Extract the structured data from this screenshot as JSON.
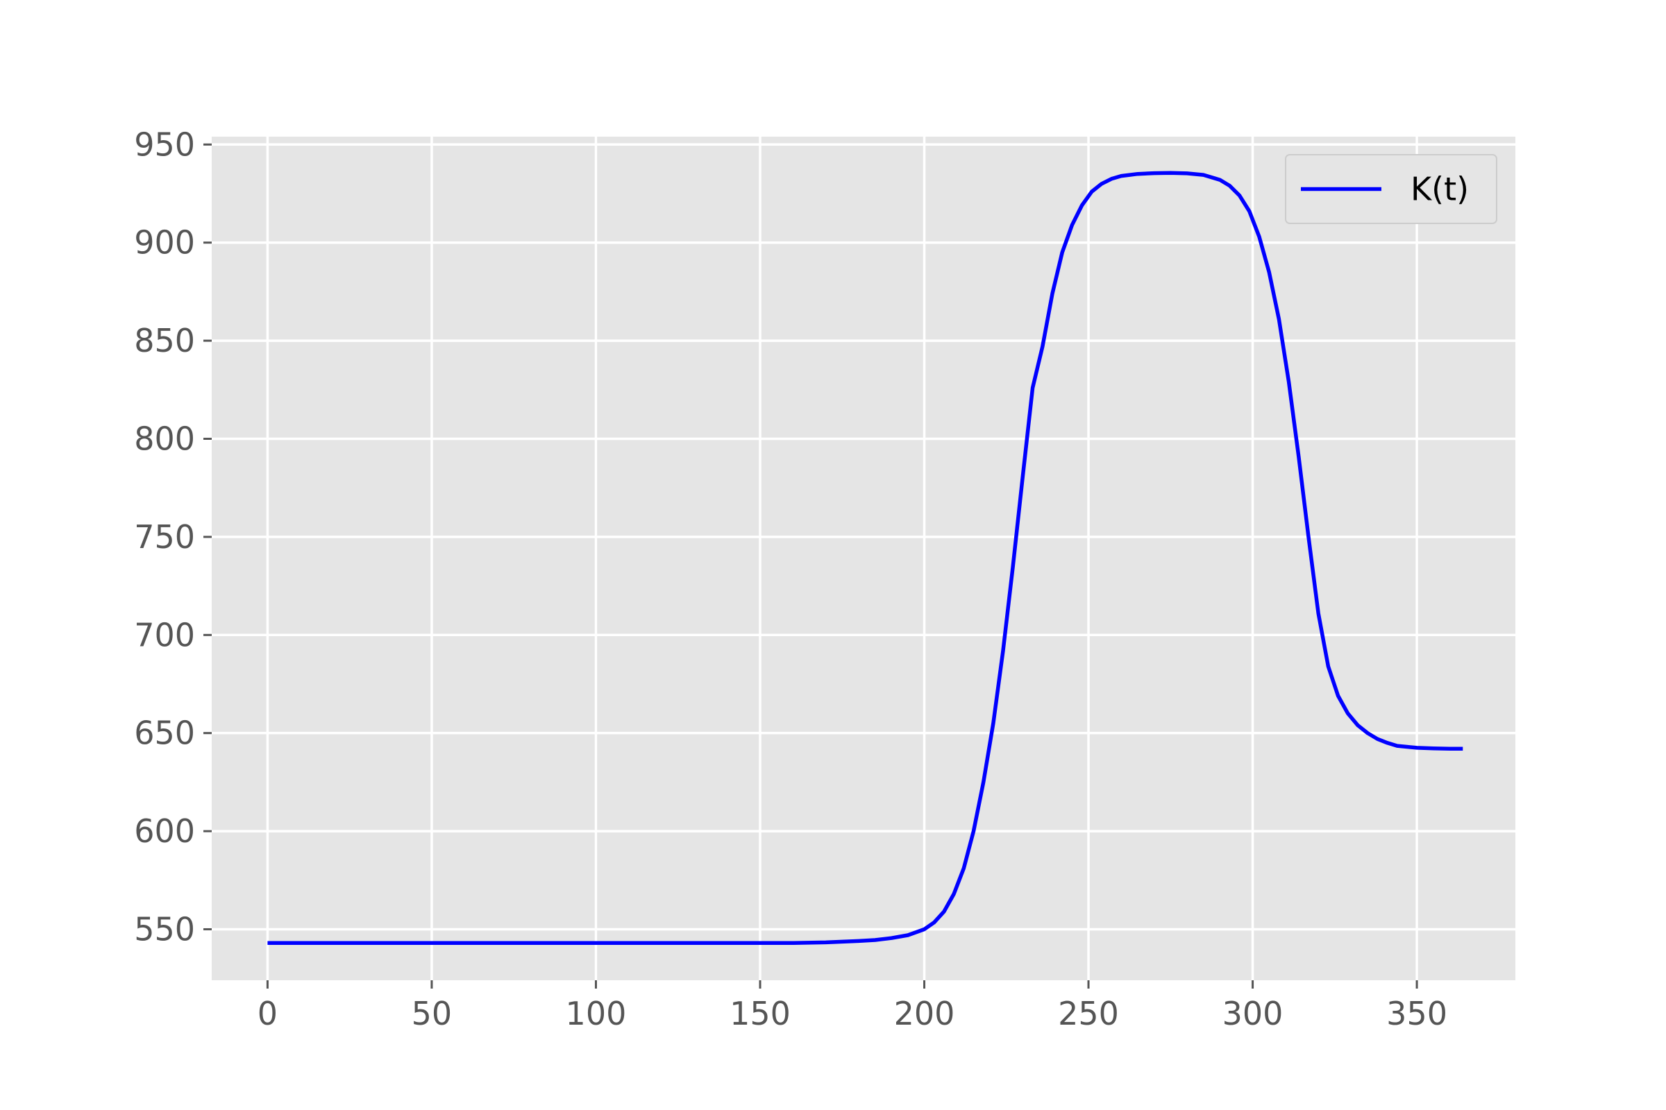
{
  "chart_data": {
    "type": "line",
    "title": "",
    "xlabel": "",
    "ylabel": "",
    "xlim": [
      -17,
      380
    ],
    "ylim": [
      524,
      954
    ],
    "xticks": [
      0,
      50,
      100,
      150,
      200,
      250,
      300,
      350
    ],
    "yticks": [
      550,
      600,
      650,
      700,
      750,
      800,
      850,
      900,
      950
    ],
    "grid": true,
    "legend_position": "top-right",
    "colors": {
      "plot_background": "#e5e5e5",
      "grid": "#ffffff",
      "tick_text": "#555555",
      "line": "#0000ff"
    },
    "series": [
      {
        "name": "K(t)",
        "color": "#0000ff",
        "x": [
          0,
          20,
          40,
          60,
          80,
          100,
          120,
          140,
          160,
          170,
          180,
          185,
          190,
          195,
          200,
          203,
          206,
          209,
          212,
          215,
          218,
          221,
          224,
          227,
          230,
          233,
          236,
          239,
          242,
          245,
          248,
          251,
          254,
          257,
          260,
          265,
          270,
          275,
          280,
          285,
          290,
          293,
          296,
          299,
          302,
          305,
          308,
          311,
          314,
          317,
          320,
          323,
          326,
          329,
          332,
          335,
          338,
          341,
          344,
          347,
          350,
          355,
          360,
          364
        ],
        "y": [
          543,
          543,
          543,
          543,
          543,
          543,
          543,
          543,
          543,
          543.3,
          544,
          544.5,
          545.5,
          547,
          550,
          553.5,
          559,
          568,
          581,
          600,
          625,
          655,
          692,
          735,
          781,
          826,
          847,
          874,
          895,
          909,
          919,
          926,
          930,
          932.5,
          934,
          935,
          935.4,
          935.5,
          935.3,
          934.5,
          932,
          929,
          924,
          916,
          903,
          885,
          861,
          829,
          791,
          750,
          711,
          684,
          669,
          660,
          654,
          650,
          647,
          645,
          643.5,
          643,
          642.5,
          642.2,
          642,
          642
        ]
      }
    ]
  }
}
